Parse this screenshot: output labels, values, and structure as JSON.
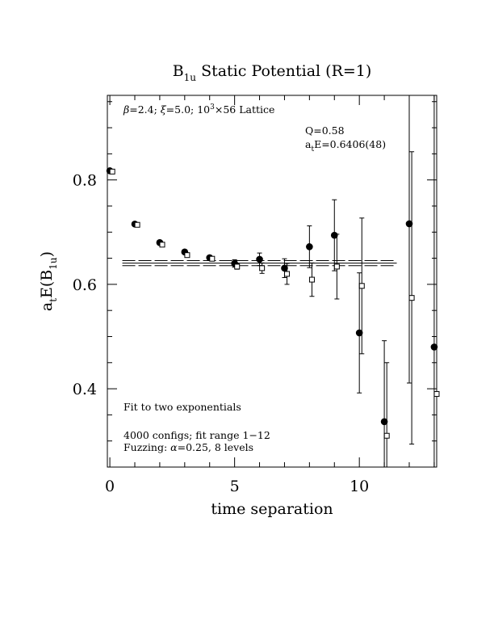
{
  "chart_data": {
    "type": "scatter",
    "title": {
      "main": "B",
      "sub": "1u",
      "rest": " Static Potential (R=1)"
    },
    "xlabel": "time separation",
    "ylabel": {
      "a": "a",
      "t": "t",
      "mid": "E(B",
      "sub": "1u",
      "end": ")"
    },
    "xlim": [
      -0.1,
      13.1
    ],
    "ylim": [
      0.25,
      0.962
    ],
    "x_ticks": [
      0,
      5,
      10
    ],
    "x_tick_labels": [
      "0",
      "5",
      "10"
    ],
    "y_ticks": [
      0.4,
      0.6,
      0.8
    ],
    "y_tick_labels": [
      "0.4",
      "0.6",
      "0.8"
    ],
    "grid": false,
    "annotations": {
      "lattice": {
        "beta": "β",
        "pre": "=2.4;  ",
        "xi": "ξ",
        "mid": "=5.0;  10",
        "sup": "3",
        "post": "×56 Lattice"
      },
      "q": "Q=0.58",
      "ate": {
        "a": "a",
        "t": "t",
        "rest": "E=0.6406(48)"
      },
      "fit": "Fit to two exponentials",
      "configs": "4000 configs; fit range 1−12",
      "fuzz": {
        "pre": "Fuzzing:  ",
        "alpha": "α",
        "post": "=0.25, 8 levels"
      }
    },
    "fit": {
      "center": 0.6406,
      "error": 0.0048,
      "x_range": [
        0.5,
        11.5
      ]
    },
    "series": [
      {
        "marker": "filled-circle",
        "points": [
          {
            "x": 0,
            "y": 0.8175,
            "err": 0.0005
          },
          {
            "x": 1,
            "y": 0.7155,
            "err": 0.001
          },
          {
            "x": 2,
            "y": 0.68,
            "err": 0.002
          },
          {
            "x": 3,
            "y": 0.662,
            "err": 0.003
          },
          {
            "x": 4,
            "y": 0.651,
            "err": 0.004
          },
          {
            "x": 5,
            "y": 0.64,
            "err": 0.007
          },
          {
            "x": 6,
            "y": 0.648,
            "err": 0.012
          },
          {
            "x": 7,
            "y": 0.631,
            "err": 0.018
          },
          {
            "x": 8,
            "y": 0.672,
            "err": 0.04
          },
          {
            "x": 9,
            "y": 0.694,
            "err": 0.068
          },
          {
            "x": 10,
            "y": 0.507,
            "err": 0.115
          },
          {
            "x": 11,
            "y": 0.337,
            "err": 0.155
          },
          {
            "x": 12,
            "y": 0.716,
            "err": 0.305
          },
          {
            "x": 13,
            "y": 0.48,
            "err": 0.8
          }
        ]
      },
      {
        "marker": "open-square",
        "points": [
          {
            "x": 0.1,
            "y": 0.816,
            "err": 0.0005
          },
          {
            "x": 1.1,
            "y": 0.714,
            "err": 0.001
          },
          {
            "x": 2.1,
            "y": 0.676,
            "err": 0.002
          },
          {
            "x": 3.1,
            "y": 0.656,
            "err": 0.003
          },
          {
            "x": 4.1,
            "y": 0.649,
            "err": 0.004
          },
          {
            "x": 5.1,
            "y": 0.634,
            "err": 0.005
          },
          {
            "x": 6.1,
            "y": 0.631,
            "err": 0.01
          },
          {
            "x": 7.1,
            "y": 0.62,
            "err": 0.02
          },
          {
            "x": 8.1,
            "y": 0.609,
            "err": 0.032
          },
          {
            "x": 9.1,
            "y": 0.634,
            "err": 0.062
          },
          {
            "x": 10.1,
            "y": 0.597,
            "err": 0.13
          },
          {
            "x": 11.1,
            "y": 0.31,
            "err": 0.14
          },
          {
            "x": 12.1,
            "y": 0.574,
            "err": 0.28
          },
          {
            "x": 13.1,
            "y": 0.39,
            "err": 0.7
          }
        ]
      }
    ]
  }
}
